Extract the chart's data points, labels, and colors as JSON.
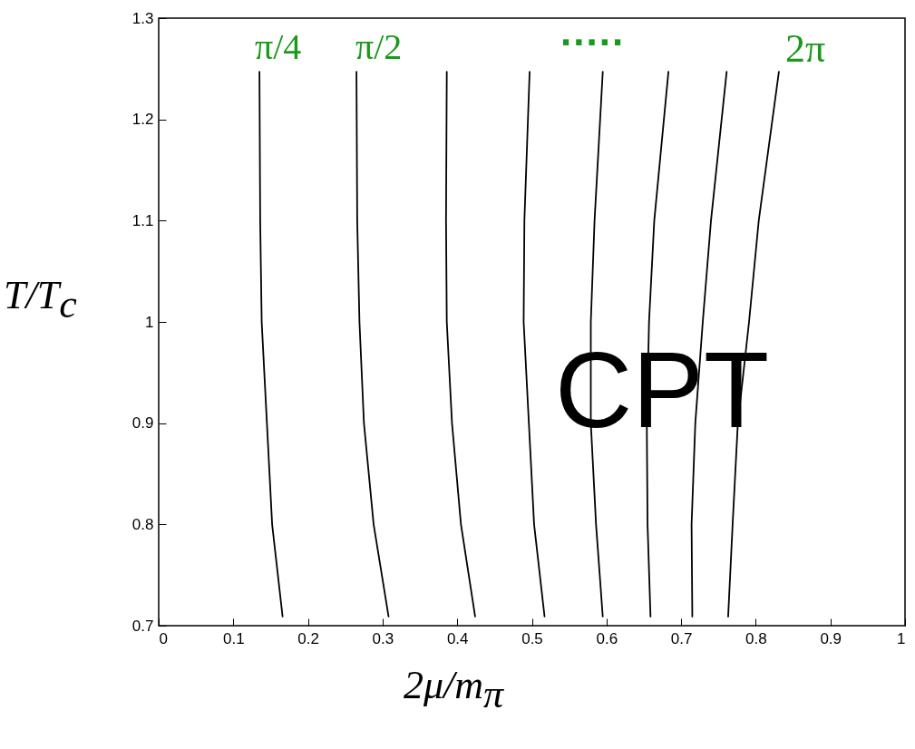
{
  "chart_data": {
    "type": "line",
    "xlabel": "2μ/m$_{π}$",
    "ylabel": "T/T$_{c}$",
    "xlim": [
      0,
      1
    ],
    "ylim": [
      0.7,
      1.3
    ],
    "xticks": [
      0,
      0.1,
      0.2,
      0.3,
      0.4,
      0.5,
      0.6,
      0.7,
      0.8,
      0.9,
      1
    ],
    "yticks": [
      0.7,
      0.8,
      0.9,
      1,
      1.1,
      1.2,
      1.3
    ],
    "series": [
      {
        "color": "#000000",
        "x": [
          0.135,
          0.136,
          0.138,
          0.145,
          0.152,
          0.166
        ],
        "values": [
          1.247,
          1.1,
          1.0,
          0.9,
          0.8,
          0.709
        ]
      },
      {
        "color": "#000000",
        "x": [
          0.265,
          0.266,
          0.269,
          0.275,
          0.288,
          0.308
        ],
        "values": [
          1.247,
          1.1,
          1.0,
          0.9,
          0.8,
          0.709
        ]
      },
      {
        "color": "#000000",
        "x": [
          0.386,
          0.385,
          0.386,
          0.393,
          0.405,
          0.424
        ],
        "values": [
          1.247,
          1.1,
          1.0,
          0.9,
          0.8,
          0.709
        ]
      },
      {
        "color": "#000000",
        "x": [
          0.497,
          0.49,
          0.489,
          0.496,
          0.503,
          0.517
        ],
        "values": [
          1.247,
          1.1,
          1.0,
          0.9,
          0.8,
          0.709
        ]
      },
      {
        "color": "#000000",
        "x": [
          0.595,
          0.584,
          0.579,
          0.579,
          0.586,
          0.595
        ],
        "values": [
          1.247,
          1.1,
          1.0,
          0.9,
          0.8,
          0.709
        ]
      },
      {
        "color": "#000000",
        "x": [
          0.683,
          0.664,
          0.657,
          0.654,
          0.655,
          0.659
        ],
        "values": [
          1.247,
          1.1,
          1.0,
          0.9,
          0.8,
          0.709
        ]
      },
      {
        "color": "#000000",
        "x": [
          0.761,
          0.74,
          0.729,
          0.719,
          0.714,
          0.715
        ],
        "values": [
          1.247,
          1.1,
          1.0,
          0.9,
          0.8,
          0.709
        ]
      },
      {
        "color": "#000000",
        "x": [
          0.831,
          0.804,
          0.791,
          0.776,
          0.769,
          0.763
        ],
        "values": [
          1.247,
          1.1,
          1.0,
          0.9,
          0.8,
          0.709
        ]
      }
    ],
    "annotations": [
      "π/4",
      "π/2",
      ".....",
      "2π",
      "CPT"
    ],
    "grid": false
  }
}
